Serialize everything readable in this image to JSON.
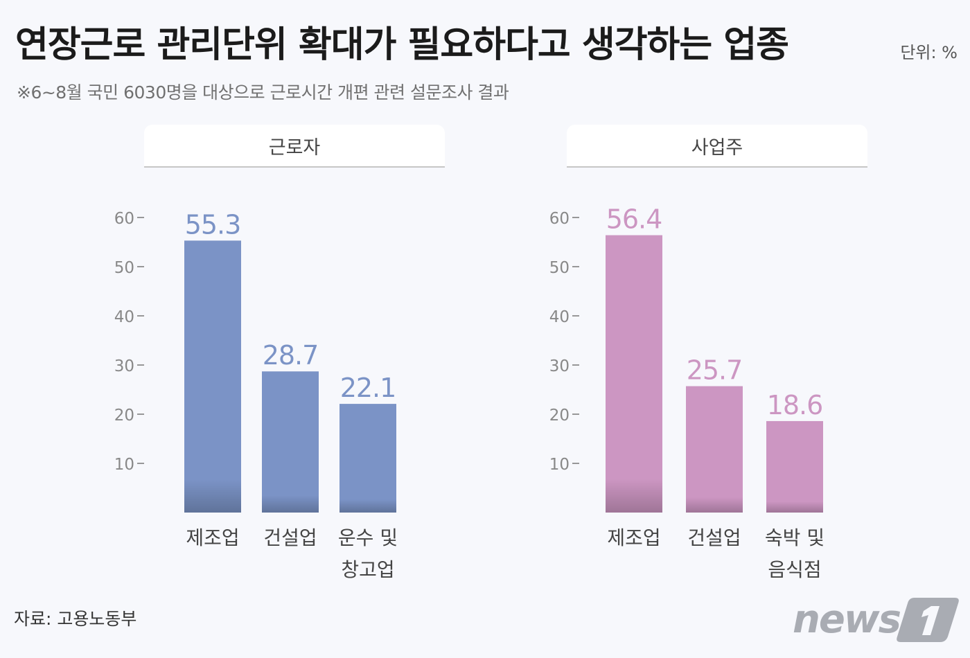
{
  "title": "연장근로 관리단위 확대가 필요하다고 생각하는 업종",
  "unit": "단위: %",
  "subtitle": "※6~8월 국민 6030명을 대상으로 근로시간 개편 관련 설문조사 결과",
  "source": "자료: 고용노동부",
  "logo_text": "news1",
  "colors": {
    "workers": "#7b93c6",
    "employers": "#cc96c2",
    "axis": "#777777"
  },
  "chart_data": [
    {
      "type": "bar",
      "title": "근로자",
      "categories": [
        [
          "제조업"
        ],
        [
          "건설업"
        ],
        [
          "운수 및",
          "창고업"
        ]
      ],
      "values": [
        55.3,
        28.7,
        22.1
      ],
      "value_labels": [
        "55.3",
        "28.7",
        "22.1"
      ],
      "yticks": [
        10,
        20,
        30,
        40,
        50,
        60
      ],
      "ylim": [
        0,
        63
      ],
      "color": "#7b93c6"
    },
    {
      "type": "bar",
      "title": "사업주",
      "categories": [
        [
          "제조업"
        ],
        [
          "건설업"
        ],
        [
          "숙박 및",
          "음식점"
        ]
      ],
      "values": [
        56.4,
        25.7,
        18.6
      ],
      "value_labels": [
        "56.4",
        "25.7",
        "18.6"
      ],
      "yticks": [
        10,
        20,
        30,
        40,
        50,
        60
      ],
      "ylim": [
        0,
        63
      ],
      "color": "#cc96c2"
    }
  ]
}
